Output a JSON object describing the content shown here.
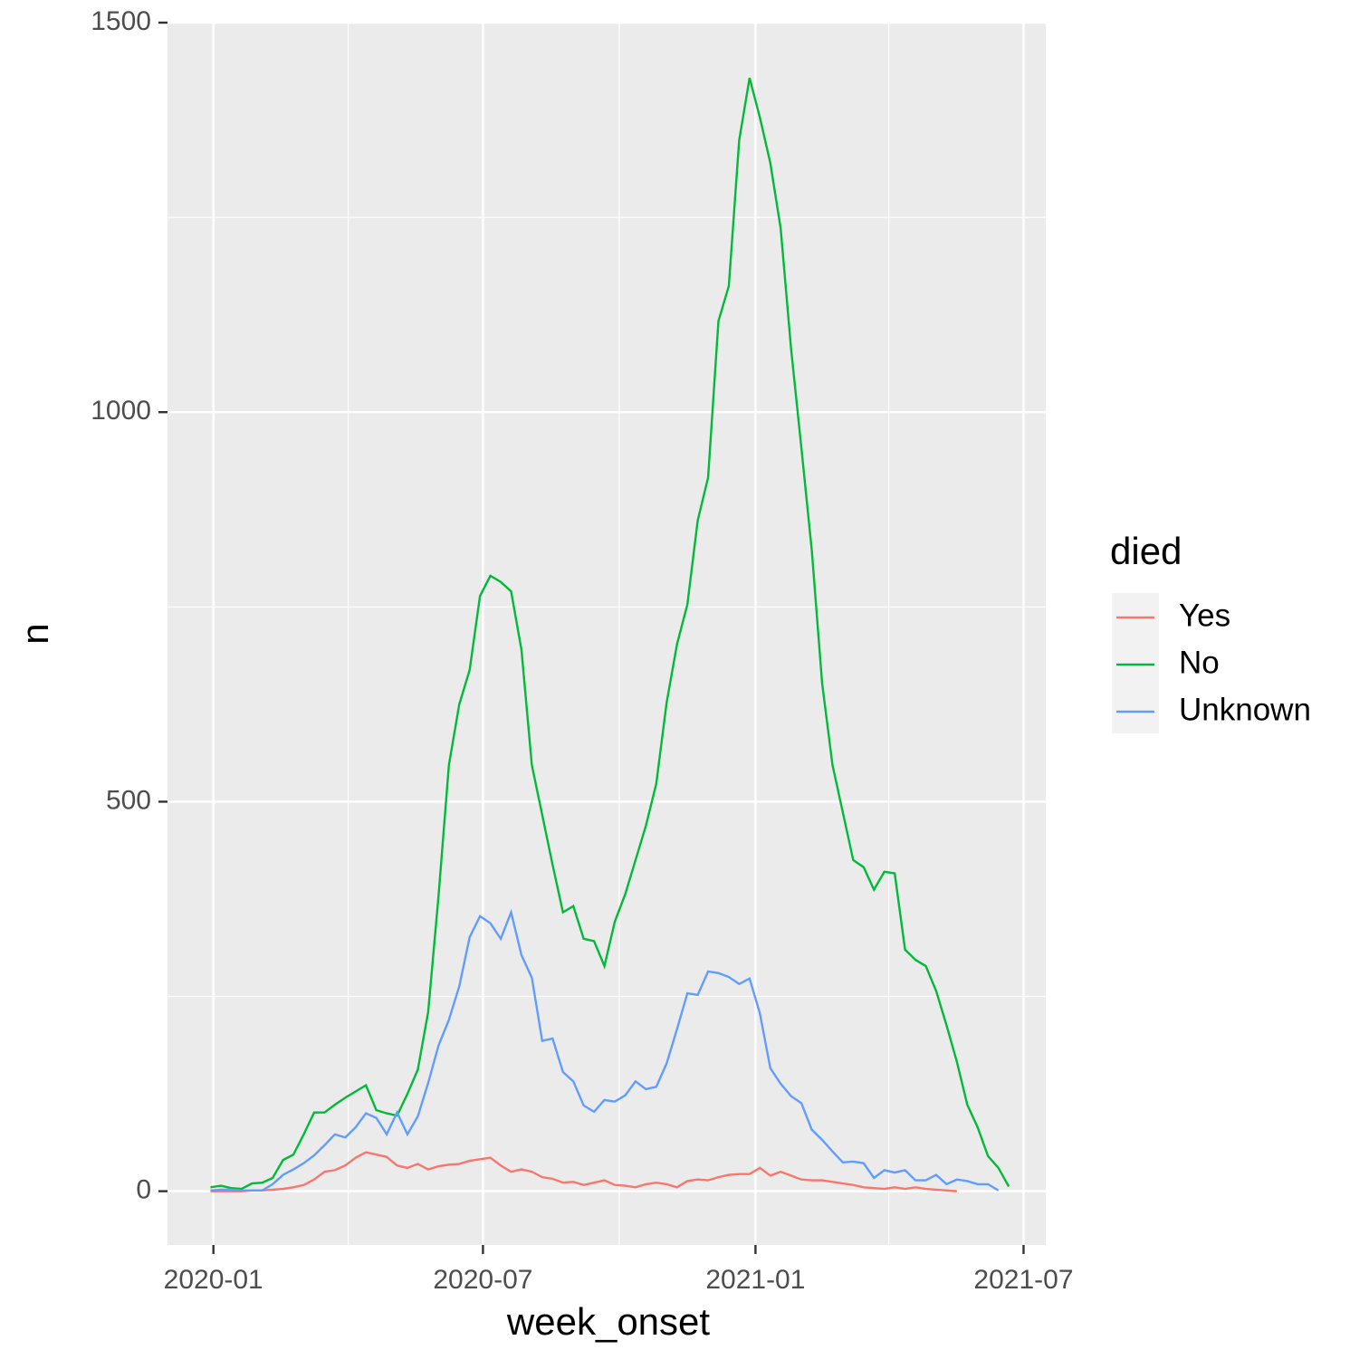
{
  "chart_data": {
    "type": "line",
    "x_label": "week_onset",
    "y_label": "n",
    "legend_title": "died",
    "legend_position": "right",
    "grid": true,
    "x": [
      "2019-12-30",
      "2020-01-06",
      "2020-01-13",
      "2020-01-20",
      "2020-01-27",
      "2020-02-03",
      "2020-02-10",
      "2020-02-17",
      "2020-02-24",
      "2020-03-02",
      "2020-03-09",
      "2020-03-16",
      "2020-03-23",
      "2020-03-30",
      "2020-04-06",
      "2020-04-13",
      "2020-04-20",
      "2020-04-27",
      "2020-05-04",
      "2020-05-11",
      "2020-05-18",
      "2020-05-25",
      "2020-06-01",
      "2020-06-08",
      "2020-06-15",
      "2020-06-22",
      "2020-06-29",
      "2020-07-06",
      "2020-07-13",
      "2020-07-20",
      "2020-07-27",
      "2020-08-03",
      "2020-08-10",
      "2020-08-17",
      "2020-08-24",
      "2020-08-31",
      "2020-09-07",
      "2020-09-14",
      "2020-09-21",
      "2020-09-28",
      "2020-10-05",
      "2020-10-12",
      "2020-10-19",
      "2020-10-26",
      "2020-11-02",
      "2020-11-09",
      "2020-11-16",
      "2020-11-23",
      "2020-11-30",
      "2020-12-07",
      "2020-12-14",
      "2020-12-21",
      "2020-12-28",
      "2021-01-04",
      "2021-01-11",
      "2021-01-18",
      "2021-01-25",
      "2021-02-01",
      "2021-02-08",
      "2021-02-15",
      "2021-02-22",
      "2021-03-01",
      "2021-03-08",
      "2021-03-15",
      "2021-03-22",
      "2021-03-29",
      "2021-04-05",
      "2021-04-12",
      "2021-04-19",
      "2021-04-26",
      "2021-05-03",
      "2021-05-10",
      "2021-05-17",
      "2021-05-24",
      "2021-05-31",
      "2021-06-07",
      "2021-06-14",
      "2021-06-21"
    ],
    "series": [
      {
        "name": "Yes",
        "color": "#F8766D",
        "values": [
          0,
          0,
          0,
          0,
          1,
          1,
          2,
          3,
          5,
          8,
          15,
          25,
          27,
          33,
          43,
          50,
          47,
          44,
          33,
          30,
          35,
          28,
          32,
          34,
          35,
          39,
          41,
          43,
          33,
          25,
          28,
          25,
          18,
          16,
          11,
          12,
          8,
          11,
          14,
          8,
          7,
          5,
          9,
          11,
          9,
          5,
          13,
          15,
          14,
          18,
          21,
          22,
          22,
          30,
          20,
          25,
          20,
          15,
          14,
          14,
          12,
          10,
          8,
          5,
          4,
          3,
          5,
          3,
          5,
          3,
          2,
          1,
          0,
          null,
          null,
          null,
          null,
          null
        ]
      },
      {
        "name": "No",
        "color": "#00BA38",
        "values": [
          5,
          7,
          4,
          3,
          10,
          11,
          17,
          40,
          47,
          73,
          101,
          101,
          111,
          120,
          128,
          136,
          104,
          100,
          97,
          125,
          156,
          230,
          379,
          547,
          625,
          669,
          764,
          790,
          782,
          770,
          695,
          547,
          483,
          419,
          358,
          366,
          324,
          321,
          289,
          346,
          381,
          425,
          469,
          523,
          627,
          702,
          753,
          861,
          916,
          1117,
          1162,
          1349,
          1429,
          1378,
          1320,
          1236,
          1082,
          954,
          823,
          652,
          547,
          486,
          425,
          416,
          387,
          410,
          408,
          310,
          297,
          289,
          257,
          213,
          166,
          111,
          82,
          45,
          30,
          6
        ]
      },
      {
        "name": "Unknown",
        "color": "#619CFF",
        "values": [
          1,
          2,
          2,
          1,
          1,
          1,
          9,
          21,
          28,
          36,
          46,
          59,
          73,
          69,
          82,
          100,
          94,
          73,
          101,
          73,
          96,
          139,
          187,
          220,
          263,
          326,
          353,
          344,
          324,
          358,
          303,
          274,
          193,
          196,
          153,
          141,
          110,
          102,
          117,
          115,
          123,
          141,
          131,
          134,
          164,
          208,
          254,
          252,
          282,
          280,
          275,
          266,
          273,
          228,
          158,
          138,
          122,
          113,
          79,
          66,
          51,
          37,
          38,
          36,
          17,
          27,
          24,
          27,
          14,
          14,
          21,
          9,
          15,
          13,
          9,
          9,
          1,
          null
        ]
      }
    ],
    "xlim": [
      "2019-12-01",
      "2021-07-16"
    ],
    "xticks": [
      {
        "value": "2020-01-01",
        "label": "2020-01"
      },
      {
        "value": "2020-07-01",
        "label": "2020-07"
      },
      {
        "value": "2021-01-01",
        "label": "2021-01"
      },
      {
        "value": "2021-07-01",
        "label": "2021-07"
      }
    ],
    "x_minor_ticks": [
      "2020-04-01",
      "2020-10-01",
      "2021-04-01"
    ],
    "ylim": [
      -69,
      1500
    ],
    "yticks": [
      0,
      500,
      1000,
      1500
    ],
    "y_minor_ticks": [
      250,
      750,
      1250
    ]
  }
}
